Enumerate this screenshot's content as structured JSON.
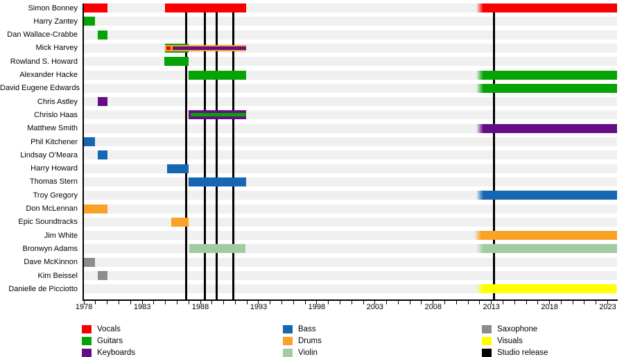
{
  "chart_data": {
    "type": "timeline",
    "title": "",
    "description": "Band line-up timeline: members (rows) vs years active (bars), colored by instrument; vertical black lines mark studio releases",
    "x_axis": {
      "start_year": 1977.93,
      "end_year": 2023.8,
      "tick_every_years": 1,
      "tick_first_year": 1978,
      "tick_last_year": 2023,
      "label_years": [
        1978,
        1983,
        1988,
        1993,
        1998,
        2003,
        2008,
        2013,
        2018,
        2023
      ],
      "labels": [
        "1978",
        "1983",
        "1988",
        "1993",
        "1998",
        "2003",
        "2008",
        "2013",
        "2018",
        "2023"
      ],
      "grid": false
    },
    "roles": {
      "vocals": {
        "label": "Vocals",
        "color": "#F90000"
      },
      "guitars": {
        "label": "Guitars",
        "color": "#06A306"
      },
      "keyboards": {
        "label": "Keyboards",
        "color": "#650D87"
      },
      "bass": {
        "label": "Bass",
        "color": "#1567B4"
      },
      "drums": {
        "label": "Drums",
        "color": "#FAA228"
      },
      "violin": {
        "label": "Violin",
        "color": "#A3CBA3"
      },
      "saxophone": {
        "label": "Saxophone",
        "color": "#8C8C8C"
      },
      "visuals": {
        "label": "Visuals",
        "color": "#FFFF00"
      },
      "studio_release": {
        "label": "Studio release",
        "color": "#000000"
      }
    },
    "legend": {
      "position": "bottom",
      "columns": [
        [
          "vocals",
          "guitars",
          "keyboards"
        ],
        [
          "bass",
          "drums",
          "violin"
        ],
        [
          "saxophone",
          "visuals",
          "studio_release"
        ]
      ]
    },
    "studio_release_years": [
      1986.8,
      1988.4,
      1989.4,
      1990.8,
      2013.2
    ],
    "members": [
      {
        "name": "Simon Bonney",
        "bars": [
          {
            "role": "vocals",
            "start": 1977.93,
            "end": 1980.0
          },
          {
            "role": "vocals",
            "start": 1984.95,
            "end": 1991.95
          },
          {
            "role": "vocals",
            "start": 2011.7,
            "end": 2023.8,
            "fade": true
          }
        ]
      },
      {
        "name": "Harry Zantey",
        "bars": [
          {
            "role": "guitars",
            "start": 1977.93,
            "end": 1978.95
          }
        ]
      },
      {
        "name": "Dan Wallace-Crabbe",
        "bars": [
          {
            "role": "guitars",
            "start": 1979.2,
            "end": 1980.0
          }
        ]
      },
      {
        "name": "Mick Harvey",
        "bars": [
          {
            "role": "guitars",
            "start": 1984.95,
            "end": 1987.0,
            "height": 13
          },
          {
            "role": "drums",
            "start": 1984.95,
            "end": 1991.95,
            "height": 9
          },
          {
            "role": "vocals",
            "start": 1985.05,
            "end": 1985.45,
            "height": 5
          },
          {
            "role": "keyboards",
            "start": 1985.6,
            "end": 1991.95,
            "height": 5
          }
        ]
      },
      {
        "name": "Rowland S. Howard",
        "bars": [
          {
            "role": "guitars",
            "start": 1984.9,
            "end": 1987.0
          }
        ]
      },
      {
        "name": "Alexander Hacke",
        "bars": [
          {
            "role": "guitars",
            "start": 1987.0,
            "end": 1991.95
          },
          {
            "role": "guitars",
            "start": 2011.7,
            "end": 2023.8,
            "fade": true
          }
        ]
      },
      {
        "name": "David Eugene Edwards",
        "bars": [
          {
            "role": "guitars",
            "start": 2011.7,
            "end": 2023.8,
            "fade": true
          }
        ]
      },
      {
        "name": "Chris Astley",
        "bars": [
          {
            "role": "keyboards",
            "start": 1979.2,
            "end": 1980.0
          }
        ]
      },
      {
        "name": "Chrislo Haas",
        "bars": [
          {
            "role": "keyboards",
            "start": 1987.0,
            "end": 1991.95,
            "height": 13
          },
          {
            "role": "guitars",
            "start": 1987.15,
            "end": 1991.9,
            "height": 5
          }
        ]
      },
      {
        "name": "Matthew Smith",
        "bars": [
          {
            "role": "keyboards",
            "start": 2011.7,
            "end": 2023.8,
            "fade": true
          }
        ]
      },
      {
        "name": "Phil Kitchener",
        "bars": [
          {
            "role": "bass",
            "start": 1977.93,
            "end": 1978.95
          }
        ]
      },
      {
        "name": "Lindsay O'Meara",
        "bars": [
          {
            "role": "bass",
            "start": 1979.2,
            "end": 1980.0
          }
        ]
      },
      {
        "name": "Harry Howard",
        "bars": [
          {
            "role": "bass",
            "start": 1985.15,
            "end": 1987.0
          }
        ]
      },
      {
        "name": "Thomas Stern",
        "bars": [
          {
            "role": "bass",
            "start": 1987.0,
            "end": 1991.95
          }
        ]
      },
      {
        "name": "Troy Gregory",
        "bars": [
          {
            "role": "bass",
            "start": 2011.7,
            "end": 2023.8,
            "fade": true
          }
        ]
      },
      {
        "name": "Don McLennan",
        "bars": [
          {
            "role": "drums",
            "start": 1977.93,
            "end": 1980.0
          }
        ]
      },
      {
        "name": "Epic Soundtracks",
        "bars": [
          {
            "role": "drums",
            "start": 1985.5,
            "end": 1987.0
          }
        ]
      },
      {
        "name": "Jim White",
        "bars": [
          {
            "role": "drums",
            "start": 2011.55,
            "end": 2023.8,
            "fade": true
          }
        ]
      },
      {
        "name": "Bronwyn Adams",
        "bars": [
          {
            "role": "violin",
            "start": 1987.05,
            "end": 1991.9
          },
          {
            "role": "violin",
            "start": 2011.7,
            "end": 2023.8,
            "fade": true
          }
        ]
      },
      {
        "name": "Dave McKinnon",
        "bars": [
          {
            "role": "saxophone",
            "start": 1977.93,
            "end": 1978.95
          }
        ]
      },
      {
        "name": "Kim Beissel",
        "bars": [
          {
            "role": "saxophone",
            "start": 1979.2,
            "end": 1980.0
          }
        ]
      },
      {
        "name": "Danielle de Picciotto",
        "bars": [
          {
            "role": "visuals",
            "start": 2011.7,
            "end": 2023.75,
            "fade": true
          }
        ]
      }
    ],
    "layout_hints": {
      "row_track_color": "#F0F0F0",
      "background_color": "#FFFFFF",
      "legend_position": "bottom"
    }
  }
}
